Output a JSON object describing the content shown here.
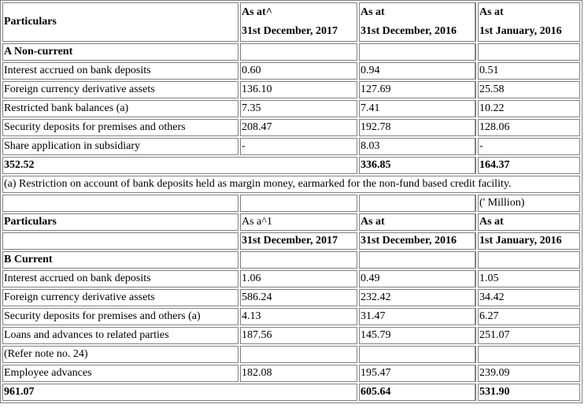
{
  "section_a": {
    "header": {
      "particulars": "Particulars",
      "col1_line1": "As at^",
      "col1_line2": "31st December, 2017",
      "col2_line1": "As at",
      "col2_line2": "31st December, 2016",
      "col3_line1": "As at",
      "col3_line2": "1st January, 2016"
    },
    "title": "A Non-current",
    "rows": [
      {
        "label": "Interest accrued on bank deposits",
        "v1": "0.60",
        "v2": "0.94",
        "v3": "0.51"
      },
      {
        "label": "Foreign currency derivative assets",
        "v1": "136.10",
        "v2": "127.69",
        "v3": "25.58"
      },
      {
        "label": "Restricted bank balances (a)",
        "v1": "7.35",
        "v2": "7.41",
        "v3": "10.22"
      },
      {
        "label": "Security deposits for premises and others",
        "v1": "208.47",
        "v2": "192.78",
        "v3": "128.06"
      },
      {
        "label": "Share application in subsidiary",
        "v1": "-",
        "v2": "8.03",
        "v3": "-"
      }
    ],
    "total": {
      "v1": "352.52",
      "v2": "336.85",
      "v3": "164.37"
    },
    "footnote": "(a) Restriction on account of bank deposits held as margin money, earmarked for the non-fund based credit facility."
  },
  "section_b": {
    "unit": "(' Million)",
    "header": {
      "particulars": "Particulars",
      "col1_line1": "As a^1",
      "col1_line2": "31st December, 2017",
      "col2_line1": "As at",
      "col2_line2": "31st December, 2016",
      "col3_line1": "As at",
      "col3_line2": "1st January, 2016"
    },
    "title": "B Current",
    "rows": [
      {
        "label": "Interest accrued on bank deposits",
        "v1": "1.06",
        "v2": "0.49",
        "v3": "1.05"
      },
      {
        "label": "Foreign currency derivative assets",
        "v1": "586.24",
        "v2": "232.42",
        "v3": "34.42"
      },
      {
        "label": "Security deposits for premises and others (a)",
        "v1": "4.13",
        "v2": "31.47",
        "v3": "6.27"
      },
      {
        "label": "Loans and advances to related parties",
        "v1": "187.56",
        "v2": "145.79",
        "v3": "251.07"
      },
      {
        "label": "(Refer note no. 24)",
        "v1": "",
        "v2": "",
        "v3": ""
      },
      {
        "label": "Employee advances",
        "v1": "182.08",
        "v2": "195.47",
        "v3": "239.09"
      }
    ],
    "total": {
      "v1": "961.07",
      "v2": "605.64",
      "v3": "531.90"
    }
  }
}
